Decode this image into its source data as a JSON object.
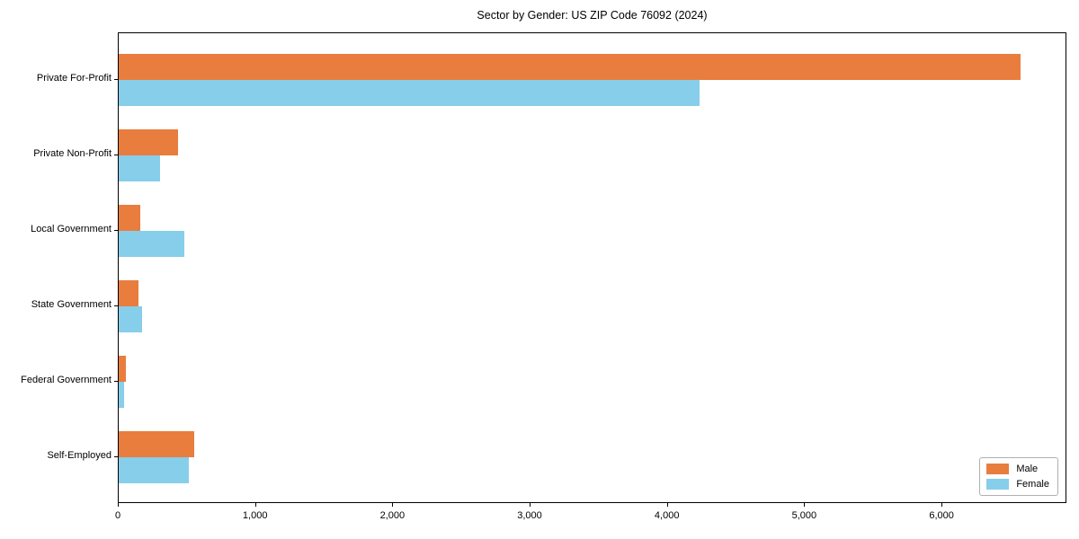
{
  "chart_data": {
    "type": "bar",
    "orientation": "horizontal",
    "title": "Sector by Gender: US ZIP Code 76092 (2024)",
    "categories": [
      "Private For-Profit",
      "Private Non-Profit",
      "Local Government",
      "State Government",
      "Federal Government",
      "Self-Employed"
    ],
    "series": [
      {
        "name": "Male",
        "color": "#e87d3e",
        "values": [
          6570,
          435,
          160,
          145,
          50,
          550
        ]
      },
      {
        "name": "Female",
        "color": "#87ceeb",
        "values": [
          4230,
          300,
          475,
          170,
          38,
          510
        ]
      }
    ],
    "xlabel": "",
    "ylabel": "",
    "xlim": [
      0,
      6910
    ],
    "xticks": [
      0,
      1000,
      2000,
      3000,
      4000,
      5000,
      6000
    ],
    "xtick_labels": [
      "0",
      "1,000",
      "2,000",
      "3,000",
      "4,000",
      "5,000",
      "6,000"
    ],
    "grid": false,
    "legend_position": "lower right",
    "axis_color": "#000000"
  }
}
